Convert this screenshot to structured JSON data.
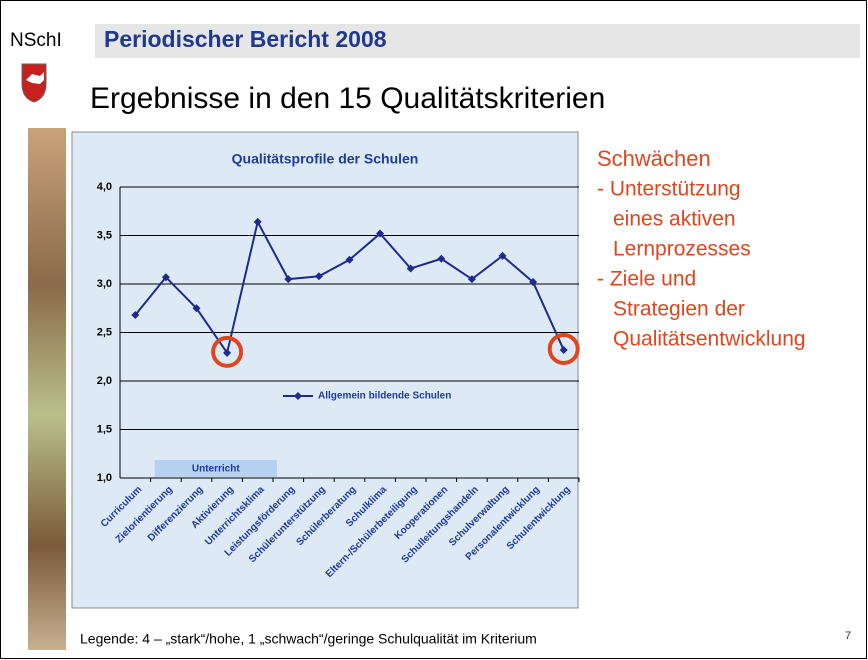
{
  "slide": {
    "logo_text": "NSchI",
    "header": "Periodischer Bericht 2008",
    "title": "Ergebnisse in den 15 Qualitätskriterien",
    "side_heading": "Schwächen",
    "side_lines": [
      "- Unterstützung",
      "eines aktiven",
      "Lernprozesses",
      "- Ziele und",
      "Strategien der",
      "Qualitätsentwicklung"
    ],
    "footer": "Legende: 4 – „stark“/hohe, 1 „schwach“/geringe Schulqualität im Kriterium",
    "page_number": "7"
  },
  "chart_data": {
    "type": "line",
    "title": "Qualitätsprofile der Schulen",
    "categories": [
      "Curriculum",
      "Zielorientierung",
      "Differenzierung",
      "Aktivierung",
      "Unterrichtsklima",
      "Leistungsförderung",
      "Schülerunterstützung",
      "Schülerberatung",
      "Schulklima",
      "Eltern-/Schülerbeteiligung",
      "Kooperationen",
      "Schulleitungshandeln",
      "Schulverwaltung",
      "Personalentwicklung",
      "Schulentwicklung"
    ],
    "series": [
      {
        "name": "Allgemein bildende Schulen",
        "color": "#1f2a8c",
        "values": [
          2.68,
          3.07,
          2.75,
          2.29,
          3.64,
          3.05,
          3.08,
          3.25,
          3.52,
          3.16,
          3.26,
          3.05,
          3.29,
          3.02,
          2.32
        ]
      }
    ],
    "ylim": [
      1,
      4
    ],
    "yticks": [
      {
        "value": 1,
        "label": "1,0"
      },
      {
        "value": 1.5,
        "label": "1,5"
      },
      {
        "value": 2,
        "label": "2,0"
      },
      {
        "value": 2.5,
        "label": "2,5"
      },
      {
        "value": 3,
        "label": "3,0"
      },
      {
        "value": 3.5,
        "label": "3,5"
      },
      {
        "value": 4,
        "label": "4,0"
      }
    ],
    "grid": true,
    "highlighted": [
      3,
      14
    ],
    "group_label": "Unterricht"
  }
}
